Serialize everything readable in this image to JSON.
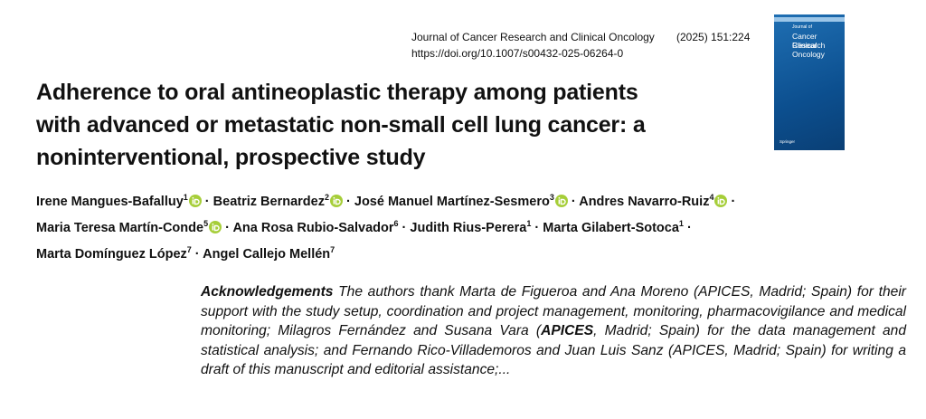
{
  "journal": {
    "name": "Journal of Cancer Research and Clinical Oncology",
    "citation": "(2025) 151:224",
    "doi": "https://doi.org/10.1007/s00432-025-06264-0"
  },
  "cover": {
    "top": "Journal of",
    "line1": "Cancer Research",
    "line2": "Clinical Oncology",
    "publisher": "Springer"
  },
  "title": {
    "lines": [
      "Adherence to oral antineoplastic therapy among patients",
      "with advanced or metastatic non-small cell lung cancer: a",
      "noninterventional, prospective study"
    ]
  },
  "authors": {
    "lines": [
      [
        {
          "name": "Irene Mangues-Bafalluy",
          "sup": "1",
          "orcid": true
        },
        {
          "name": "Beatriz Bernardez",
          "sup": "2",
          "orcid": true
        },
        {
          "name": "José Manuel Martínez-Sesmero",
          "sup": "3",
          "orcid": true
        },
        {
          "name": "Andres Navarro-Ruiz",
          "sup": "4",
          "orcid": true
        }
      ],
      [
        {
          "name": "Maria Teresa Martín-Conde",
          "sup": "5",
          "orcid": true
        },
        {
          "name": "Ana Rosa Rubio-Salvador",
          "sup": "6",
          "orcid": false
        },
        {
          "name": "Judith Rius-Perera",
          "sup": "1",
          "orcid": false
        },
        {
          "name": "Marta Gilabert-Sotoca",
          "sup": "1",
          "orcid": false
        }
      ],
      [
        {
          "name": "Marta  Domínguez López",
          "sup": "7",
          "orcid": false
        },
        {
          "name": "Angel Callejo Mellén",
          "sup": "7",
          "orcid": false
        }
      ]
    ]
  },
  "acknowledgements": {
    "heading": "Acknowledgements",
    "runs": [
      {
        "text": " The authors thank Marta de Figueroa and Ana Moreno (APICES, Madrid; Spain) for their support with the study setup, coordination and project management, monitoring, pharmacovigilance and medical monitoring; Milagros Fernández and Susana Vara (",
        "bold": false
      },
      {
        "text": "APICES",
        "bold": true
      },
      {
        "text": ", Madrid; Spain) for the data management and statistical analysis; and Fernando Rico-Villademoros and Juan Luis Sanz (APICES, Madrid; Spain) for writing a draft of this manuscript and editorial assistance;...",
        "bold": false
      }
    ]
  }
}
